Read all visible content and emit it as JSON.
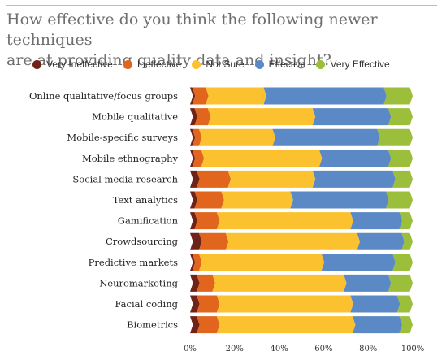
{
  "title_line1": "How effective do you think the following newer techniques",
  "title_line2": "are at providing quality data and insight?",
  "legend": [
    {
      "label": "Very Ineffective",
      "color": "#6e2218"
    },
    {
      "label": "Ineffective",
      "color": "#e2651e"
    },
    {
      "label": "Not Sure",
      "color": "#fcc12e"
    },
    {
      "label": "Effective",
      "color": "#5b89c6"
    },
    {
      "label": "Very Effective",
      "color": "#9bbe3b"
    }
  ],
  "chart_data": {
    "type": "bar",
    "orientation": "horizontal",
    "stacked": true,
    "title": "How effective do you think the following newer techniques are at providing quality data and insight?",
    "categories": [
      "Online qualitative/focus groups",
      "Mobile qualitative",
      "Mobile-specific surveys",
      "Mobile ethnography",
      "Social media research",
      "Text analytics",
      "Gamification",
      "Crowdsourcing",
      "Predictive markets",
      "Neuromarketing",
      "Facial coding",
      "Biometrics"
    ],
    "series": [
      {
        "name": "Very Ineffective",
        "color": "#6e2218",
        "values": [
          1,
          2,
          1,
          1,
          3,
          2,
          2,
          4,
          1,
          3,
          3,
          3
        ]
      },
      {
        "name": "Ineffective",
        "color": "#e2651e",
        "values": [
          6,
          6,
          3,
          4,
          14,
          12,
          10,
          12,
          3,
          7,
          9,
          9
        ]
      },
      {
        "name": "Not Sure",
        "color": "#fcc12e",
        "values": [
          26,
          47,
          33,
          53,
          38,
          31,
          60,
          59,
          55,
          59,
          60,
          61
        ]
      },
      {
        "name": "Effective",
        "color": "#5b89c6",
        "values": [
          54,
          34,
          47,
          31,
          36,
          43,
          22,
          20,
          32,
          20,
          21,
          21
        ]
      },
      {
        "name": "Very Effective",
        "color": "#9bbe3b",
        "values": [
          13,
          11,
          16,
          11,
          9,
          12,
          6,
          5,
          9,
          11,
          7,
          6
        ]
      }
    ],
    "xlim": [
      0,
      100
    ],
    "x_ticks": [
      "0%",
      "20%",
      "40%",
      "60%",
      "80%",
      "100%"
    ],
    "legend_position": "top",
    "grid": false
  }
}
